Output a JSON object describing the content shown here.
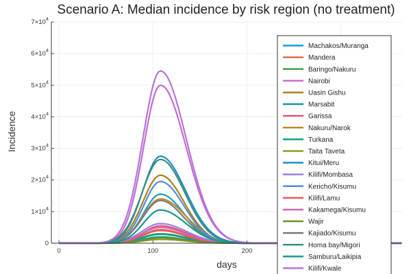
{
  "chart_data": {
    "type": "line",
    "title": "Scenario A: Median incidence by risk region (no treatment)",
    "xlabel": "days",
    "ylabel": "Incidence",
    "xlim": [
      -8,
      365
    ],
    "ylim": [
      0,
      70000
    ],
    "x_ticks": [
      0,
      100,
      200,
      300
    ],
    "y_ticks": [
      {
        "value": 0,
        "mantissa": "0",
        "exponent": ""
      },
      {
        "value": 10000,
        "mantissa": "1×10",
        "exponent": "4"
      },
      {
        "value": 20000,
        "mantissa": "2×10",
        "exponent": "4"
      },
      {
        "value": 30000,
        "mantissa": "3×10",
        "exponent": "4"
      },
      {
        "value": 40000,
        "mantissa": "4×10",
        "exponent": "4"
      },
      {
        "value": 50000,
        "mantissa": "5×10",
        "exponent": "4"
      },
      {
        "value": 60000,
        "mantissa": "6×10",
        "exponent": "4"
      },
      {
        "value": 70000,
        "mantissa": "7×10",
        "exponent": "4"
      }
    ],
    "x_range": [
      0,
      365
    ],
    "peak_day": 108,
    "grid": true,
    "legend_position": "right",
    "series": [
      {
        "name": "Machakos/Muranga",
        "color": "#0f9ed5",
        "peak": 15500
      },
      {
        "name": "Mandera",
        "color": "#e06c47",
        "peak": 4300
      },
      {
        "name": "Baringo/Nakuru",
        "color": "#3aa045",
        "peak": 3000
      },
      {
        "name": "Nairobi",
        "color": "#c36bd1",
        "peak": 50000
      },
      {
        "name": "Uasin Gishu",
        "color": "#b07e14",
        "peak": 21500
      },
      {
        "name": "Marsabit",
        "color": "#0c9a9f",
        "peak": 2800
      },
      {
        "name": "Garissa",
        "color": "#e2567a",
        "peak": 5500
      },
      {
        "name": "Nakuru/Narok",
        "color": "#c08a1e",
        "peak": 14000
      },
      {
        "name": "Turkana",
        "color": "#0aa683",
        "peak": 2000
      },
      {
        "name": "Taita Taveta",
        "color": "#8c9a1e",
        "peak": 1200
      },
      {
        "name": "Kitui/Meru",
        "color": "#1b8fbf",
        "peak": 27500
      },
      {
        "name": "Kilifi/Mombasa",
        "color": "#9d7fe0",
        "peak": 6200
      },
      {
        "name": "Kericho/Kisumu",
        "color": "#4f8be0",
        "peak": 19500
      },
      {
        "name": "Kilifi/Lamu",
        "color": "#e45a5a",
        "peak": 4000
      },
      {
        "name": "Kakamega/Kisumu",
        "color": "#cc63b9",
        "peak": 5000
      },
      {
        "name": "Wajir",
        "color": "#6a8f2a",
        "peak": 1700
      },
      {
        "name": "Kajiado/Kisumu",
        "color": "#7a7a7a",
        "peak": 13500
      },
      {
        "name": "Homa bay/Migori",
        "color": "#3a8f7e",
        "peak": 26500
      },
      {
        "name": "Samburu/Laikipia",
        "color": "#129b8a",
        "peak": 10500
      },
      {
        "name": "Kilifi/Kwale",
        "color": "#b673df",
        "peak": 54500
      }
    ]
  }
}
